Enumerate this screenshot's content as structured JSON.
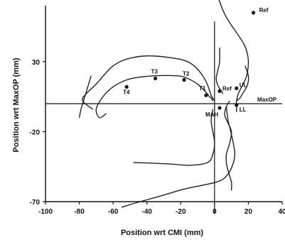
{
  "chart_data": {
    "type": "line",
    "title": "",
    "xlabel": "Position wrt CMI   (mm)",
    "ylabel": "Position wrt MaxOP   (mm)",
    "xlim": [
      -100,
      40
    ],
    "ylim": [
      -70,
      70
    ],
    "xticks": [
      -100,
      -80,
      -60,
      -40,
      -20,
      0,
      20,
      40
    ],
    "yticks": [
      30,
      -20,
      -70
    ],
    "xtick_labels": [
      "-100",
      "-80",
      "-60",
      "-40",
      "-20",
      "0",
      "20",
      "40"
    ],
    "ytick_labels": [
      "30",
      "-20",
      "-70"
    ],
    "reference_lines": {
      "horizontal_y": 0,
      "vertical_x": 0,
      "horizontal_label": "MaxOP"
    },
    "grid": false,
    "legend": "none",
    "series": [
      {
        "x": [
          -72,
          -78,
          -76,
          -70,
          -65,
          -60,
          -54,
          -48,
          -42,
          -35,
          -27,
          -18,
          -12,
          -7,
          -4,
          -2,
          0
        ],
        "y": [
          -4,
          2,
          7,
          14,
          21,
          27,
          31,
          33,
          34,
          34,
          33,
          31,
          27,
          20,
          13,
          6,
          2
        ]
      },
      {
        "x": [
          -64,
          -68,
          -70,
          -66,
          -60,
          -52,
          -44,
          -34,
          -24,
          -18,
          -10,
          -5,
          -3,
          -2,
          -1
        ],
        "y": [
          -7,
          -10,
          -4,
          5,
          12,
          17,
          19,
          20,
          20,
          19,
          14,
          8,
          5,
          4,
          2
        ]
      },
      {
        "x": [
          -80,
          -79,
          -77,
          -75,
          -73
        ],
        "y": [
          -10,
          -4,
          4,
          12,
          20
        ]
      },
      {
        "x": [
          -1,
          -2,
          -1,
          0,
          -1,
          -4,
          -14,
          -28,
          -48
        ],
        "y": [
          -4,
          -12,
          -20,
          -28,
          -36,
          -42,
          -44,
          -43,
          -42
        ]
      },
      {
        "x": [
          7,
          8,
          10,
          12,
          10,
          6,
          1,
          -6,
          -18,
          -32,
          -44,
          -55
        ],
        "y": [
          -2,
          -12,
          -22,
          -36,
          -46,
          -53,
          -56,
          -58,
          -61,
          -66,
          -70,
          -74
        ]
      },
      {
        "x": [
          1,
          3,
          6,
          10,
          14,
          18,
          20,
          19,
          16,
          14,
          13,
          13,
          13
        ],
        "y": [
          82,
          73,
          64,
          56,
          49,
          41,
          31,
          20,
          12,
          7,
          2,
          -2,
          -6
        ]
      },
      {
        "x": [
          13,
          15,
          17,
          19,
          20,
          20,
          19,
          18
        ],
        "y": [
          2,
          4,
          8,
          12,
          16,
          20,
          24,
          27
        ]
      },
      {
        "x": [
          9,
          7,
          6,
          8,
          10,
          9,
          7,
          7,
          8,
          10,
          10
        ],
        "y": [
          2,
          -2,
          -8,
          -14,
          -20,
          -28,
          -36,
          -42,
          -48,
          -56,
          -62
        ]
      },
      {
        "x": [
          5,
          4,
          2,
          1,
          2,
          3,
          3
        ],
        "y": [
          7,
          9,
          13,
          18,
          24,
          30,
          40
        ]
      }
    ],
    "points": [
      {
        "label": "Ref",
        "x": 7,
        "y": 78
      },
      {
        "label": "Ref",
        "x": 23,
        "y": 65
      },
      {
        "label": "T1",
        "x": -5,
        "y": 6
      },
      {
        "label": "T2",
        "x": -18,
        "y": 17
      },
      {
        "label": "T3",
        "x": -35,
        "y": 18
      },
      {
        "label": "T4",
        "x": -52,
        "y": 12
      },
      {
        "label": "Ref",
        "x": 3,
        "y": 9
      },
      {
        "label": "UL",
        "x": 13,
        "y": 11
      },
      {
        "label": "MAH",
        "x": 3,
        "y": -3
      },
      {
        "label": "LL",
        "x": 13,
        "y": -1
      }
    ]
  }
}
